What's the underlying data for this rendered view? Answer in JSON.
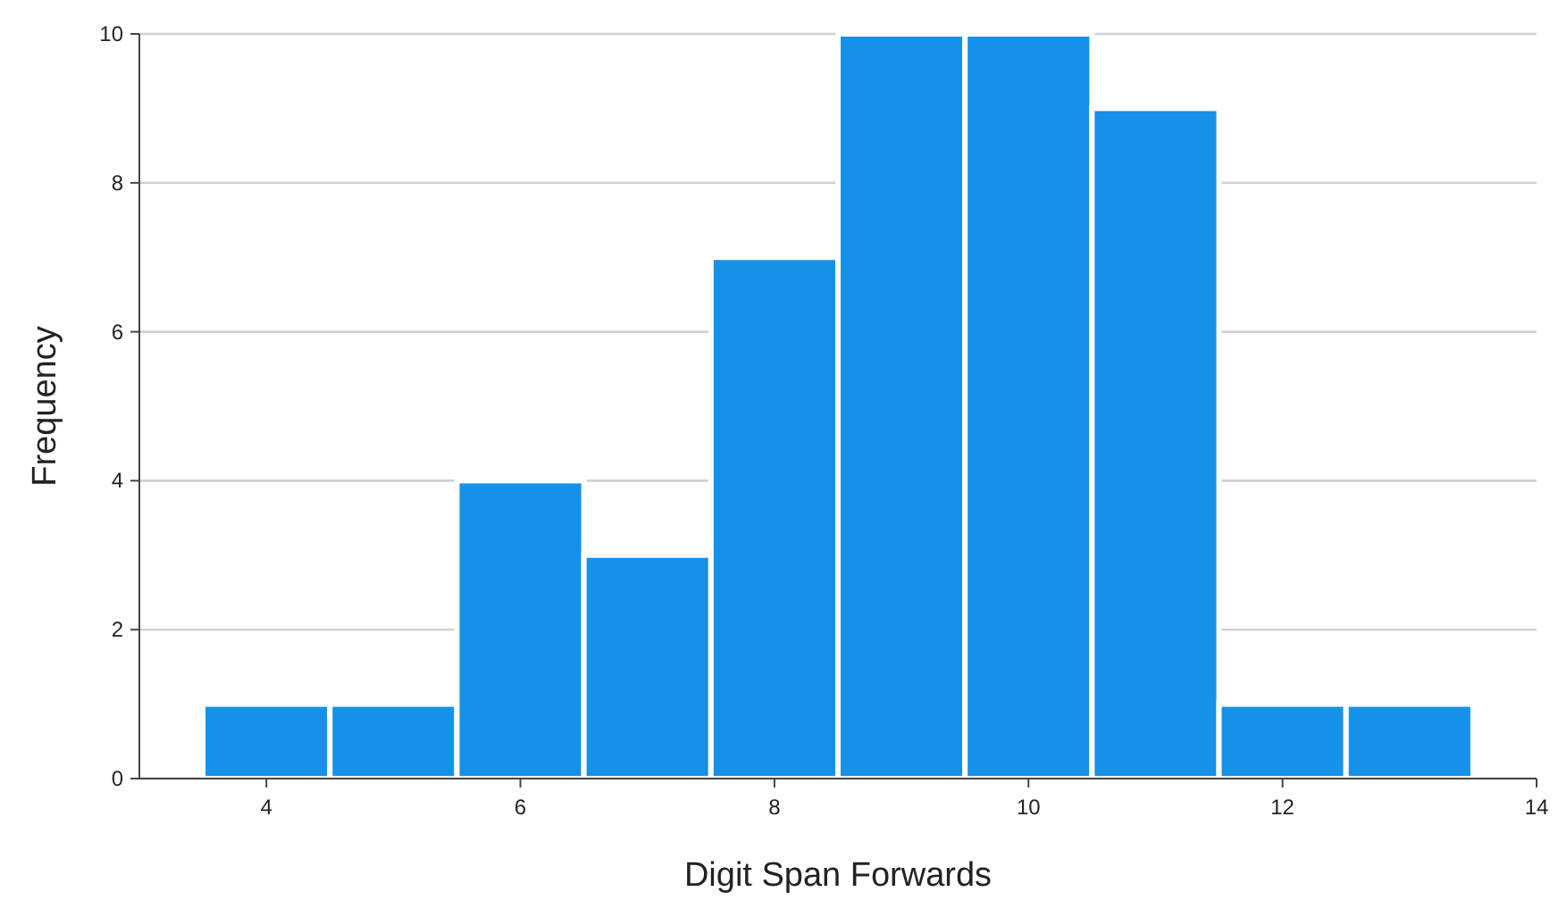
{
  "chart_data": {
    "type": "histogram",
    "xlabel": "Digit Span Forwards",
    "ylabel": "Frequency",
    "bins": [
      3.5,
      4.5,
      5.5,
      6.5,
      7.5,
      8.5,
      9.5,
      10.5,
      11.5,
      12.5,
      13.5
    ],
    "values": [
      1,
      1,
      4,
      3,
      7,
      10,
      10,
      9,
      1,
      1
    ],
    "color": "#1591e8",
    "xlim": [
      3,
      14
    ],
    "xticks": [
      4,
      6,
      8,
      10,
      12,
      14
    ],
    "ylim": [
      0,
      10
    ],
    "yticks": [
      0,
      2,
      4,
      6,
      8,
      10
    ],
    "grid": "y"
  }
}
